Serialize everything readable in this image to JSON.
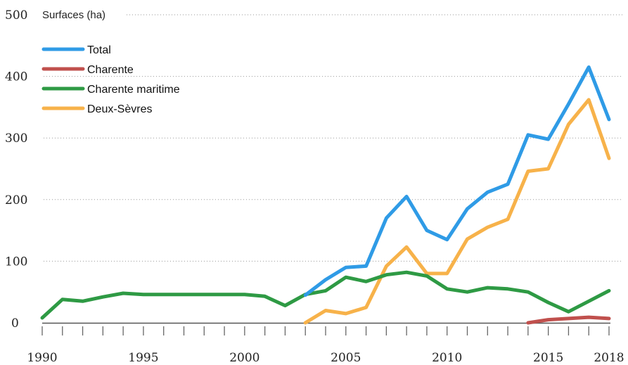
{
  "chart_data": {
    "type": "line",
    "ylabel": "Surfaces (ha)",
    "xlabel": "",
    "ylim": [
      0,
      500
    ],
    "xlim": [
      1990,
      2018
    ],
    "yticks": [
      "0",
      "100",
      "200",
      "300",
      "400",
      "500"
    ],
    "xticks": [
      "1990",
      "1995",
      "2000",
      "2005",
      "2010",
      "2015",
      "2018"
    ],
    "grid": true,
    "legend_position": "top-left",
    "series": [
      {
        "name": "Total",
        "color": "#2f9be6",
        "x": [
          2003,
          2004,
          2005,
          2006,
          2007,
          2008,
          2009,
          2010,
          2011,
          2012,
          2013,
          2014,
          2015,
          2016,
          2017,
          2018
        ],
        "y": [
          45,
          70,
          90,
          92,
          170,
          205,
          150,
          135,
          185,
          212,
          225,
          305,
          298,
          355,
          415,
          330
        ]
      },
      {
        "name": "Charente",
        "color": "#c0504d",
        "x": [
          2014,
          2015,
          2016,
          2017,
          2018
        ],
        "y": [
          0,
          5,
          7,
          9,
          7
        ]
      },
      {
        "name": "Charente maritime",
        "color": "#2e9a44",
        "x": [
          1990,
          1991,
          1992,
          1993,
          1994,
          1995,
          1996,
          1997,
          1998,
          1999,
          2000,
          2001,
          2002,
          2003,
          2004,
          2005,
          2006,
          2007,
          2008,
          2009,
          2010,
          2011,
          2012,
          2013,
          2014,
          2015,
          2016,
          2017,
          2018
        ],
        "y": [
          8,
          38,
          35,
          42,
          48,
          46,
          46,
          46,
          46,
          46,
          46,
          43,
          28,
          46,
          52,
          74,
          67,
          78,
          82,
          76,
          55,
          50,
          57,
          55,
          50,
          33,
          18,
          35,
          52
        ]
      },
      {
        "name": "Deux-Sèvres",
        "color": "#f7b24a",
        "x": [
          2003,
          2004,
          2005,
          2006,
          2007,
          2008,
          2009,
          2010,
          2011,
          2012,
          2013,
          2014,
          2015,
          2016,
          2017,
          2018
        ],
        "y": [
          0,
          20,
          15,
          25,
          92,
          123,
          80,
          80,
          136,
          155,
          168,
          246,
          250,
          322,
          362,
          267
        ]
      }
    ]
  }
}
